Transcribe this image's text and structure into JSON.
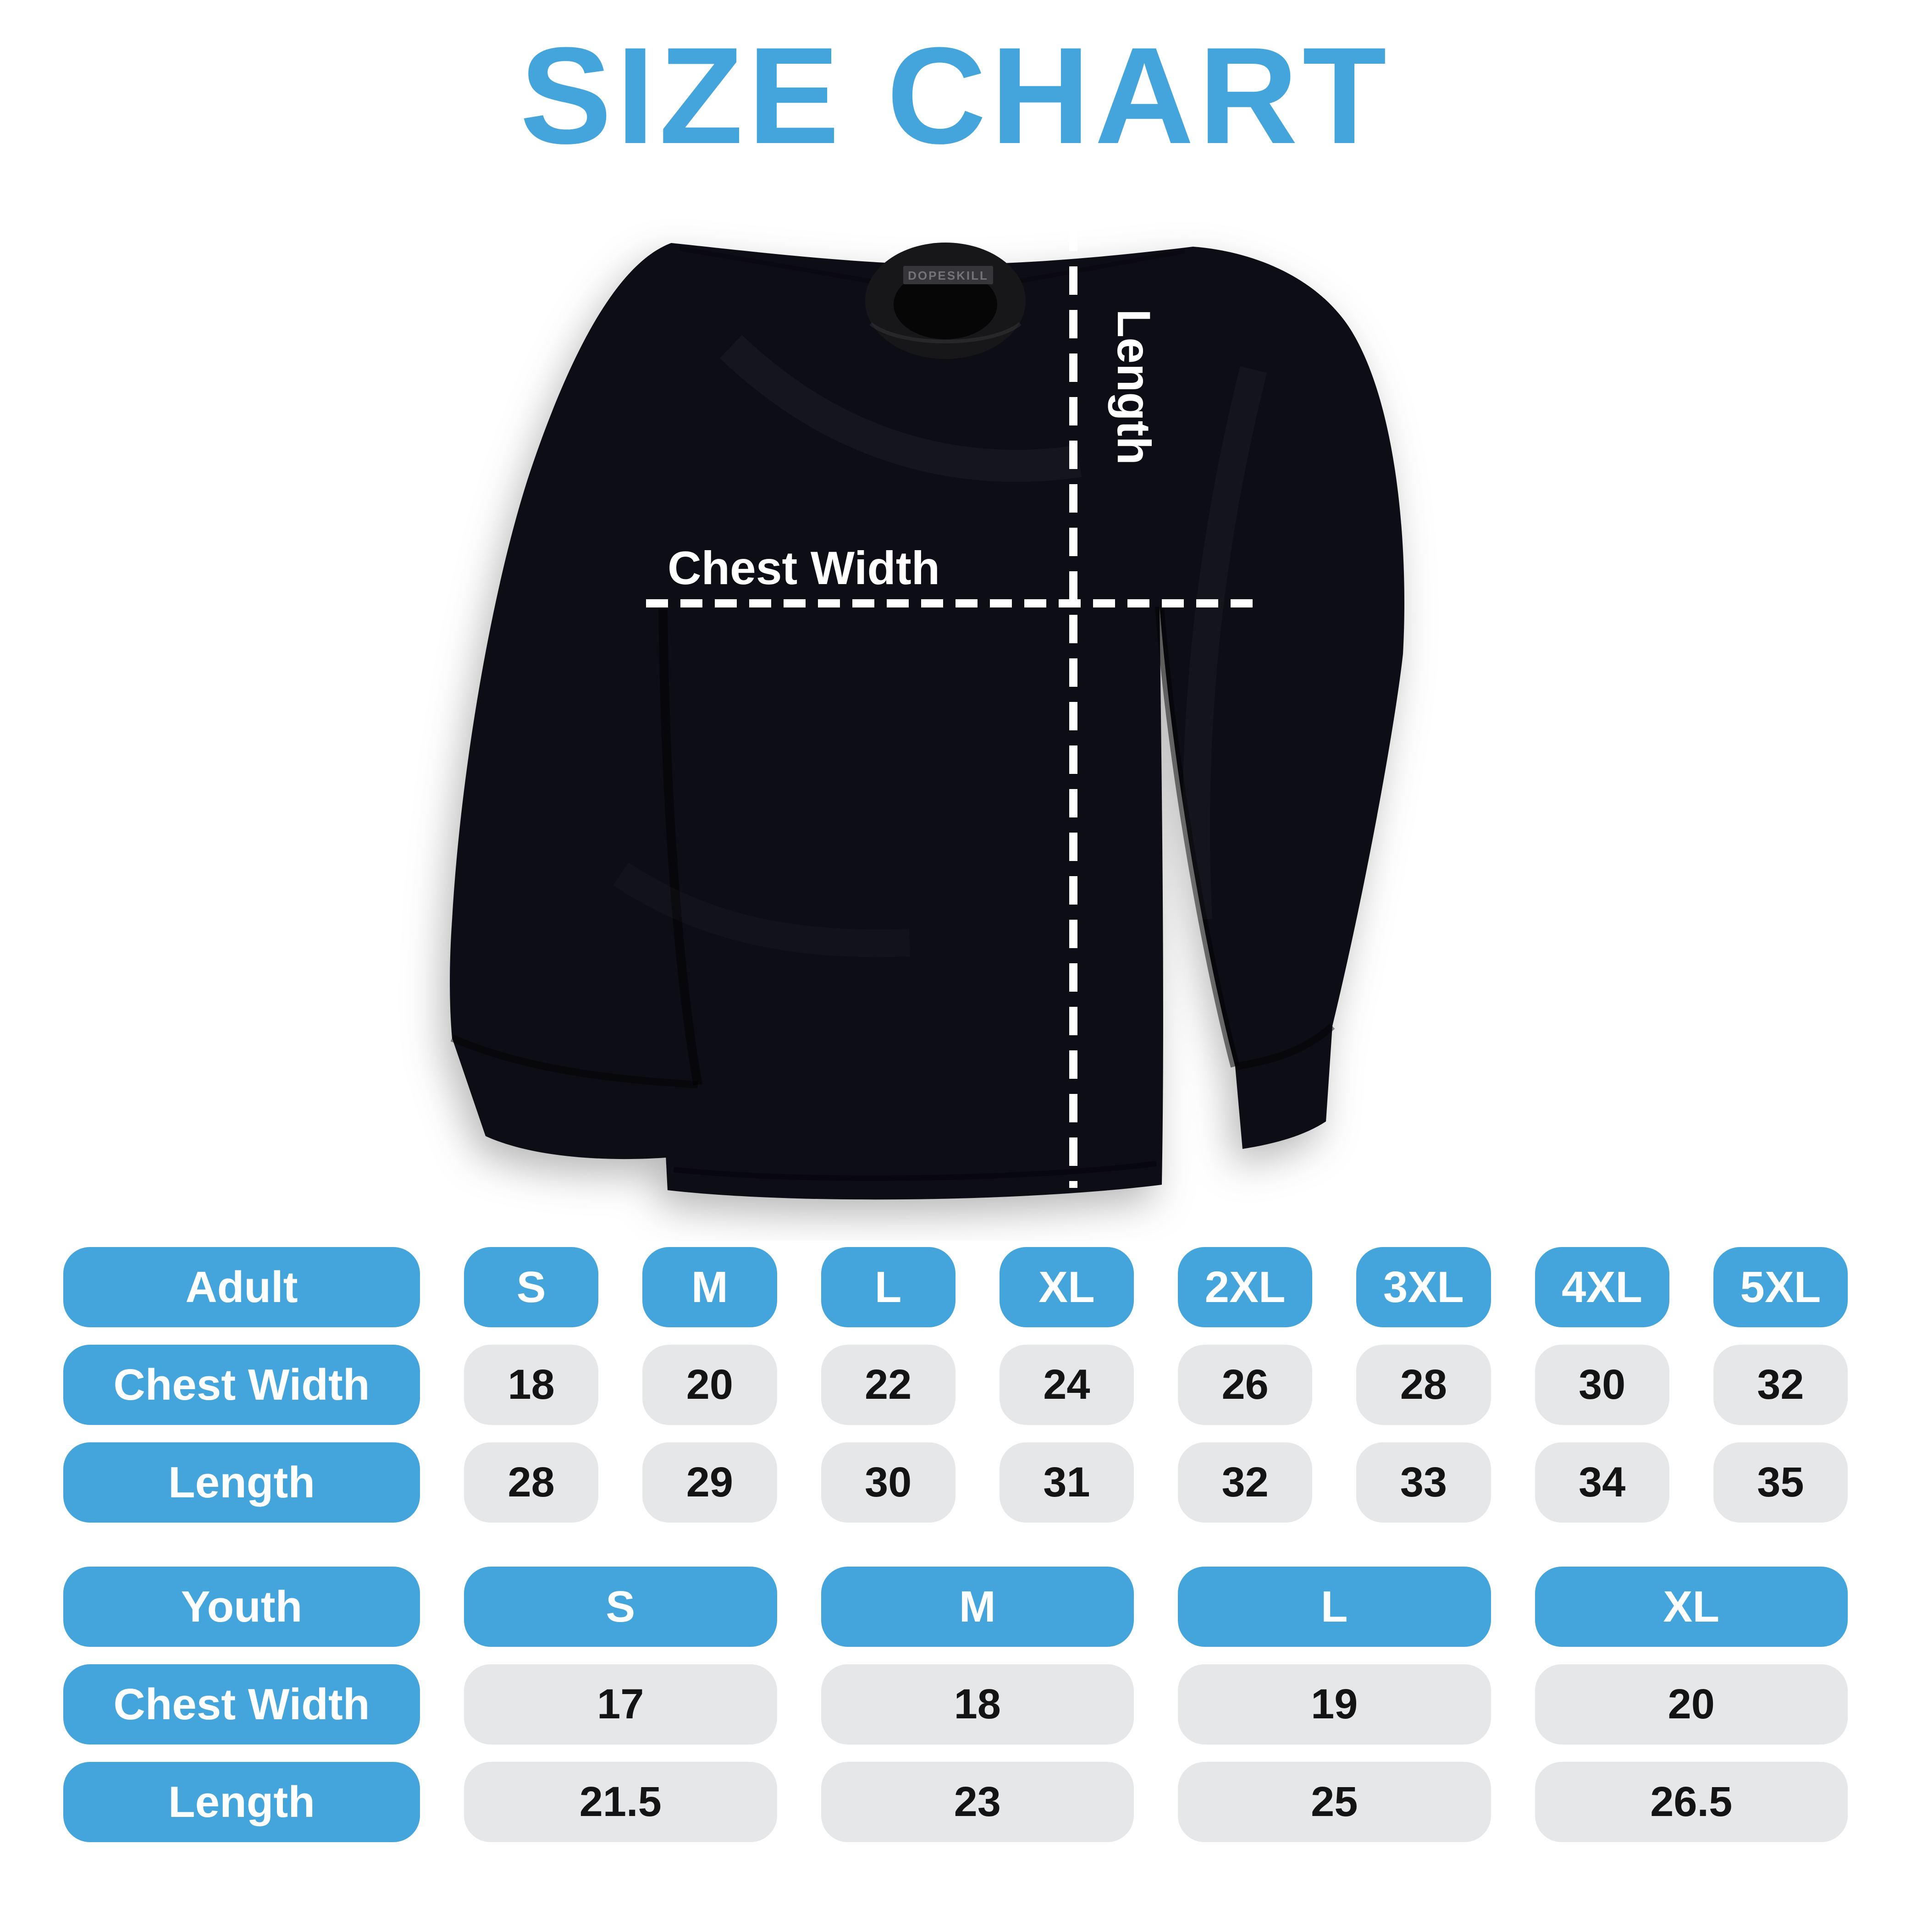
{
  "page": {
    "title": "SIZE CHART",
    "background_color": "#ffffff",
    "accent_blue": "#44A5DC",
    "pill_gray": "#E6E7E9",
    "value_text_color": "#141414"
  },
  "shirt": {
    "tag_label": "DOPESKILL",
    "chest_width_label": "Chest Width",
    "length_label": "Length",
    "fabric_color": "#101013",
    "measure_line_color": "#ffffff"
  },
  "chart_data": [
    {
      "type": "table",
      "name": "adult",
      "header_label": "Adult",
      "columns": [
        "S",
        "M",
        "L",
        "XL",
        "2XL",
        "3XL",
        "4XL",
        "5XL"
      ],
      "rows": [
        {
          "label": "Chest Width",
          "values": [
            18,
            20,
            22,
            24,
            26,
            28,
            30,
            32
          ]
        },
        {
          "label": "Length",
          "values": [
            28,
            29,
            30,
            31,
            32,
            33,
            34,
            35
          ]
        }
      ]
    },
    {
      "type": "table",
      "name": "youth",
      "header_label": "Youth",
      "columns": [
        "S",
        "M",
        "L",
        "XL"
      ],
      "rows": [
        {
          "label": "Chest Width",
          "values": [
            17,
            18,
            19,
            20
          ]
        },
        {
          "label": "Length",
          "values": [
            21.5,
            23,
            25,
            26.5
          ]
        }
      ]
    }
  ]
}
